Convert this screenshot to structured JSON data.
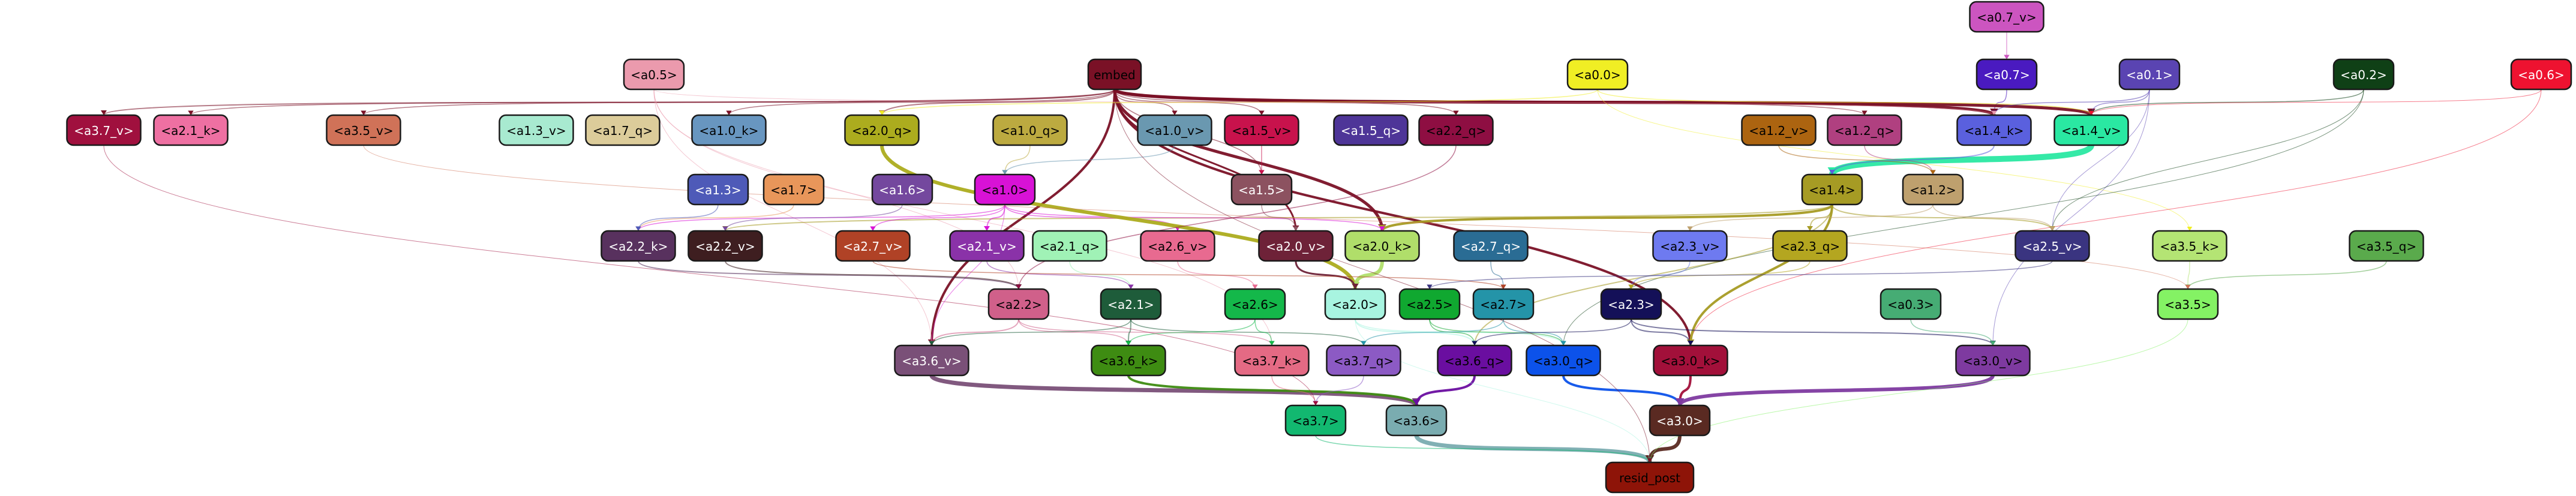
{
  "nodes": [
    {
      "id": "a0.7_v",
      "label": "<a0.7_v>",
      "fill": "#cc55c0",
      "text": "#000000"
    },
    {
      "id": "a0.5",
      "label": "<a0.5>",
      "fill": "#eb9aad",
      "text": "#000000"
    },
    {
      "id": "embed",
      "label": "embed",
      "fill": "#7a1126",
      "text": "#000000"
    },
    {
      "id": "a0.0",
      "label": "<a0.0>",
      "fill": "#f0ee24",
      "text": "#000000"
    },
    {
      "id": "a0.7",
      "label": "<a0.7>",
      "fill": "#4a1ac0",
      "text": "#ffffff"
    },
    {
      "id": "a0.1",
      "label": "<a0.1>",
      "fill": "#5a44b2",
      "text": "#ffffff"
    },
    {
      "id": "a0.2",
      "label": "<a0.2>",
      "fill": "#0f4016",
      "text": "#ffffff"
    },
    {
      "id": "a0.6",
      "label": "<a0.6>",
      "fill": "#ee1230",
      "text": "#ffffff"
    },
    {
      "id": "a3.7_v",
      "label": "<a3.7_v>",
      "fill": "#a0103e",
      "text": "#ffffff"
    },
    {
      "id": "a2.1_k",
      "label": "<a2.1_k>",
      "fill": "#ee70a2",
      "text": "#000000"
    },
    {
      "id": "a3.5_v",
      "label": "<a3.5_v>",
      "fill": "#d07258",
      "text": "#000000"
    },
    {
      "id": "a1.3_v",
      "label": "<a1.3_v>",
      "fill": "#a8ead0",
      "text": "#000000"
    },
    {
      "id": "a1.7_q",
      "label": "<a1.7_q>",
      "fill": "#dccc9a",
      "text": "#000000"
    },
    {
      "id": "a1.0_k",
      "label": "<a1.0_k>",
      "fill": "#6896c0",
      "text": "#000000"
    },
    {
      "id": "a2.0_q",
      "label": "<a2.0_q>",
      "fill": "#acac1e",
      "text": "#000000"
    },
    {
      "id": "a1.0_q",
      "label": "<a1.0_q>",
      "fill": "#bcaa40",
      "text": "#000000"
    },
    {
      "id": "a1.0_v",
      "label": "<a1.0_v>",
      "fill": "#6a98b0",
      "text": "#000000"
    },
    {
      "id": "a1.5_v",
      "label": "<a1.5_v>",
      "fill": "#c8124c",
      "text": "#000000"
    },
    {
      "id": "a1.5_q",
      "label": "<a1.5_q>",
      "fill": "#4e3598",
      "text": "#ffffff"
    },
    {
      "id": "a2.2_q",
      "label": "<a2.2_q>",
      "fill": "#8e0e42",
      "text": "#000000"
    },
    {
      "id": "a1.2_v",
      "label": "<a1.2_v>",
      "fill": "#ac6410",
      "text": "#000000"
    },
    {
      "id": "a1.2_q",
      "label": "<a1.2_q>",
      "fill": "#b04080",
      "text": "#000000"
    },
    {
      "id": "a1.4_k",
      "label": "<a1.4_k>",
      "fill": "#5a60de",
      "text": "#000000"
    },
    {
      "id": "a1.4_v",
      "label": "<a1.4_v>",
      "fill": "#2ae8a2",
      "text": "#000000"
    },
    {
      "id": "a1.3",
      "label": "<a1.3>",
      "fill": "#4e5ab8",
      "text": "#ffffff"
    },
    {
      "id": "a1.7",
      "label": "<a1.7>",
      "fill": "#e8965a",
      "text": "#000000"
    },
    {
      "id": "a1.6",
      "label": "<a1.6>",
      "fill": "#74489e",
      "text": "#ffffff"
    },
    {
      "id": "a1.0",
      "label": "<a1.0>",
      "fill": "#d812d6",
      "text": "#000000"
    },
    {
      "id": "a1.5",
      "label": "<a1.5>",
      "fill": "#8c5260",
      "text": "#ffffff"
    },
    {
      "id": "a1.4",
      "label": "<a1.4>",
      "fill": "#a69b24",
      "text": "#000000"
    },
    {
      "id": "a1.2",
      "label": "<a1.2>",
      "fill": "#bea06e",
      "text": "#000000"
    },
    {
      "id": "a2.2_k",
      "label": "<a2.2_k>",
      "fill": "#58315e",
      "text": "#ffffff"
    },
    {
      "id": "a2.2_v",
      "label": "<a2.2_v>",
      "fill": "#3e1e20",
      "text": "#ffffff"
    },
    {
      "id": "a2.7_v",
      "label": "<a2.7_v>",
      "fill": "#b04226",
      "text": "#ffffff"
    },
    {
      "id": "a2.1_v",
      "label": "<a2.1_v>",
      "fill": "#8a32a8",
      "text": "#ffffff"
    },
    {
      "id": "a2.1_q",
      "label": "<a2.1_q>",
      "fill": "#a0f2b6",
      "text": "#000000"
    },
    {
      "id": "a2.6_v",
      "label": "<a2.6_v>",
      "fill": "#e86a90",
      "text": "#000000"
    },
    {
      "id": "a2.0_v",
      "label": "<a2.0_v>",
      "fill": "#6e2238",
      "text": "#ffffff"
    },
    {
      "id": "a2.0_k",
      "label": "<a2.0_k>",
      "fill": "#b0de6a",
      "text": "#000000"
    },
    {
      "id": "a2.7_q",
      "label": "<a2.7_q>",
      "fill": "#2a6c94",
      "text": "#ffffff"
    },
    {
      "id": "a2.3_v",
      "label": "<a2.3_v>",
      "fill": "#6e7af0",
      "text": "#000000"
    },
    {
      "id": "a2.3_q",
      "label": "<a2.3_q>",
      "fill": "#b4a620",
      "text": "#000000"
    },
    {
      "id": "a2.5_v",
      "label": "<a2.5_v>",
      "fill": "#3a3480",
      "text": "#ffffff"
    },
    {
      "id": "a3.5_k",
      "label": "<a3.5_k>",
      "fill": "#b4e474",
      "text": "#000000"
    },
    {
      "id": "a3.5_q",
      "label": "<a3.5_q>",
      "fill": "#5aaa4c",
      "text": "#000000"
    },
    {
      "id": "a2.2",
      "label": "<a2.2>",
      "fill": "#d0608a",
      "text": "#000000"
    },
    {
      "id": "a2.1",
      "label": "<a2.1>",
      "fill": "#1e5c3a",
      "text": "#ffffff"
    },
    {
      "id": "a2.6",
      "label": "<a2.6>",
      "fill": "#14b84a",
      "text": "#000000"
    },
    {
      "id": "a2.0",
      "label": "<a2.0>",
      "fill": "#a8f4e0",
      "text": "#000000"
    },
    {
      "id": "a2.5",
      "label": "<a2.5>",
      "fill": "#10a830",
      "text": "#000000"
    },
    {
      "id": "a2.7",
      "label": "<a2.7>",
      "fill": "#2494a8",
      "text": "#000000"
    },
    {
      "id": "a2.3",
      "label": "<a2.3>",
      "fill": "#141058",
      "text": "#ffffff"
    },
    {
      "id": "a0.3",
      "label": "<a0.3>",
      "fill": "#46ac74",
      "text": "#000000"
    },
    {
      "id": "a3.5",
      "label": "<a3.5>",
      "fill": "#84f264",
      "text": "#000000"
    },
    {
      "id": "a3.6_v",
      "label": "<a3.6_v>",
      "fill": "#7a5078",
      "text": "#ffffff"
    },
    {
      "id": "a3.6_k",
      "label": "<a3.6_k>",
      "fill": "#3e8c12",
      "text": "#000000"
    },
    {
      "id": "a3.7_k",
      "label": "<a3.7_k>",
      "fill": "#e46a84",
      "text": "#000000"
    },
    {
      "id": "a3.7_q",
      "label": "<a3.7_q>",
      "fill": "#8c5ac4",
      "text": "#000000"
    },
    {
      "id": "a3.6_q",
      "label": "<a3.6_q>",
      "fill": "#6a0ea0",
      "text": "#000000"
    },
    {
      "id": "a3.0_q",
      "label": "<a3.0_q>",
      "fill": "#0c52ea",
      "text": "#000000"
    },
    {
      "id": "a3.0_k",
      "label": "<a3.0_k>",
      "fill": "#a2103a",
      "text": "#000000"
    },
    {
      "id": "a3.0_v",
      "label": "<a3.0_v>",
      "fill": "#7e3aa0",
      "text": "#000000"
    },
    {
      "id": "a3.7",
      "label": "<a3.7>",
      "fill": "#12b870",
      "text": "#000000"
    },
    {
      "id": "a3.6",
      "label": "<a3.6>",
      "fill": "#7aacb0",
      "text": "#000000"
    },
    {
      "id": "a3.0",
      "label": "<a3.0>",
      "fill": "#5a2a22",
      "text": "#ffffff"
    },
    {
      "id": "resid_post",
      "label": "resid_post",
      "fill": "#8e1408",
      "text": "#000000"
    }
  ],
  "edges": [
    {
      "from": "a0.7_v",
      "to": "a0.7",
      "color": "#cc55c0",
      "weight": 1.5
    },
    {
      "from": "a0.7",
      "to": "a1.4_k",
      "color": "#4a1ac0",
      "weight": 1.5
    },
    {
      "from": "embed",
      "to": "a1.4_k",
      "color": "#7a1126",
      "weight": 5
    },
    {
      "from": "embed",
      "to": "a1.4_v",
      "color": "#7a1126",
      "weight": 5
    },
    {
      "from": "embed",
      "to": "a2.0_k",
      "color": "#7a1126",
      "weight": 5
    },
    {
      "from": "embed",
      "to": "a3.6_v",
      "color": "#7a1126",
      "weight": 4
    },
    {
      "from": "embed",
      "to": "a3.0_k",
      "color": "#7a1126",
      "weight": 4
    },
    {
      "from": "embed",
      "to": "a2.0_v",
      "color": "#7a1126",
      "weight": 3
    },
    {
      "from": "embed",
      "to": "a3.7_v",
      "color": "#7a1126",
      "weight": 2
    },
    {
      "from": "embed",
      "to": "a2.1_k",
      "color": "#7a1126",
      "weight": 1.5
    },
    {
      "from": "embed",
      "to": "a3.5_v",
      "color": "#7a1126",
      "weight": 1.5
    },
    {
      "from": "embed",
      "to": "a1.0_k",
      "color": "#7a1126",
      "weight": 1.5
    },
    {
      "from": "embed",
      "to": "a2.0_q",
      "color": "#7a1126",
      "weight": 2
    },
    {
      "from": "embed",
      "to": "a1.0_v",
      "color": "#7a1126",
      "weight": 1.5
    },
    {
      "from": "embed",
      "to": "a1.5_v",
      "color": "#7a1126",
      "weight": 1.5
    },
    {
      "from": "embed",
      "to": "a2.2_q",
      "color": "#7a1126",
      "weight": 1.5
    },
    {
      "from": "embed",
      "to": "a1.2_q",
      "color": "#7a1126",
      "weight": 1.5
    },
    {
      "from": "embed",
      "to": "a1.5",
      "color": "#7a1126",
      "weight": 1.5
    },
    {
      "from": "a0.0",
      "to": "a1.4_v",
      "color": "#f0ee24",
      "weight": 1.5
    },
    {
      "from": "a0.0",
      "to": "a2.0_q",
      "color": "#f0ee24",
      "weight": 1.5
    },
    {
      "from": "a0.0",
      "to": "a3.5_k",
      "color": "#f0ee24",
      "weight": 1
    },
    {
      "from": "a0.1",
      "to": "a1.4_k",
      "color": "#5a44b2",
      "weight": 1.5
    },
    {
      "from": "a0.1",
      "to": "a1.4_v",
      "color": "#5a44b2",
      "weight": 1.5
    },
    {
      "from": "a0.1",
      "to": "a2.5_v",
      "color": "#5a44b2",
      "weight": 1
    },
    {
      "from": "a0.1",
      "to": "a3.0_v",
      "color": "#5a44b2",
      "weight": 1
    },
    {
      "from": "a0.2",
      "to": "a1.4_v",
      "color": "#0f4016",
      "weight": 1.5
    },
    {
      "from": "a0.2",
      "to": "a2.5_v",
      "color": "#0f4016",
      "weight": 1
    },
    {
      "from": "a0.2",
      "to": "a3.0_q",
      "color": "#0f4016",
      "weight": 1
    },
    {
      "from": "a0.6",
      "to": "a1.4_v",
      "color": "#ee1230",
      "weight": 1
    },
    {
      "from": "a0.6",
      "to": "a3.0_k",
      "color": "#ee1230",
      "weight": 1
    },
    {
      "from": "a0.5",
      "to": "a3.6_v",
      "color": "#eb9aad",
      "weight": 1
    },
    {
      "from": "a0.5",
      "to": "a2.2",
      "color": "#eb9aad",
      "weight": 1
    },
    {
      "from": "a0.5",
      "to": "a3.7_k",
      "color": "#eb9aad",
      "weight": 1
    },
    {
      "from": "a0.5",
      "to": "a1.4_k",
      "color": "#eb9aad",
      "weight": 1
    },
    {
      "from": "a1.4_v",
      "to": "a1.4",
      "color": "#2ae8a2",
      "weight": 10
    },
    {
      "from": "a1.4_k",
      "to": "a1.4",
      "color": "#5a60de",
      "weight": 2
    },
    {
      "from": "a1.2_q",
      "to": "a1.2",
      "color": "#b04080",
      "weight": 1.5
    },
    {
      "from": "a1.2_v",
      "to": "a1.2",
      "color": "#ac6410",
      "weight": 1.5
    },
    {
      "from": "a1.0_q",
      "to": "a1.0",
      "color": "#bcaa40",
      "weight": 1.5
    },
    {
      "from": "a1.0_v",
      "to": "a1.0",
      "color": "#6a98b0",
      "weight": 1.5
    },
    {
      "from": "a1.5_v",
      "to": "a1.5",
      "color": "#c8124c",
      "weight": 1.5
    },
    {
      "from": "a1.4",
      "to": "a2.0_k",
      "color": "#a69b24",
      "weight": 4
    },
    {
      "from": "a1.4",
      "to": "a3.0_k",
      "color": "#a69b24",
      "weight": 4
    },
    {
      "from": "a1.4",
      "to": "a2.3_q",
      "color": "#a69b24",
      "weight": 2
    },
    {
      "from": "a1.4",
      "to": "a2.5_v",
      "color": "#a69b24",
      "weight": 2
    },
    {
      "from": "a1.4",
      "to": "a2.2_v",
      "color": "#a69b24",
      "weight": 2
    },
    {
      "from": "a1.4",
      "to": "a3.6_q",
      "color": "#a69b24",
      "weight": 2
    },
    {
      "from": "a1.2",
      "to": "a2.5_v",
      "color": "#bea06e",
      "weight": 1.5
    },
    {
      "from": "a1.2",
      "to": "a2.3_v",
      "color": "#bea06e",
      "weight": 1.5
    },
    {
      "from": "a1.0",
      "to": "a2.1_v",
      "color": "#d812d6",
      "weight": 2
    },
    {
      "from": "a1.0",
      "to": "a2.6_v",
      "color": "#d812d6",
      "weight": 1.5
    },
    {
      "from": "a1.0",
      "to": "a2.2_k",
      "color": "#d812d6",
      "weight": 1.5
    },
    {
      "from": "a1.0",
      "to": "a2.0_k",
      "color": "#d812d6",
      "weight": 1.5
    },
    {
      "from": "a1.0",
      "to": "a2.7_v",
      "color": "#d812d6",
      "weight": 1.5
    },
    {
      "from": "a1.0",
      "to": "a3.6_v",
      "color": "#d812d6",
      "weight": 1
    },
    {
      "from": "a1.5",
      "to": "a2.0_v",
      "color": "#8c5260",
      "weight": 1.5
    },
    {
      "from": "a1.6",
      "to": "a2.2_v",
      "color": "#74489e",
      "weight": 1.5
    },
    {
      "from": "a1.7",
      "to": "a2.2_k",
      "color": "#e8965a",
      "weight": 1.5
    },
    {
      "from": "a1.3",
      "to": "a2.2_k",
      "color": "#4e5ab8",
      "weight": 1.5
    },
    {
      "from": "a2.0_q",
      "to": "a2.0",
      "color": "#acac1e",
      "weight": 6
    },
    {
      "from": "a2.0_k",
      "to": "a2.0",
      "color": "#b0de6a",
      "weight": 6
    },
    {
      "from": "a2.0_v",
      "to": "a2.0",
      "color": "#6e2238",
      "weight": 3
    },
    {
      "from": "a2.2_k",
      "to": "a2.2",
      "color": "#58315e",
      "weight": 2
    },
    {
      "from": "a2.2_v",
      "to": "a2.2",
      "color": "#3e1e20",
      "weight": 2
    },
    {
      "from": "a2.2_q",
      "to": "a2.2",
      "color": "#8e0e42",
      "weight": 1.5
    },
    {
      "from": "a2.1_q",
      "to": "a2.1",
      "color": "#a0f2b6",
      "weight": 1.5
    },
    {
      "from": "a2.1_v",
      "to": "a2.1",
      "color": "#8a32a8",
      "weight": 1.5
    },
    {
      "from": "a2.6_v",
      "to": "a2.6",
      "color": "#e86a90",
      "weight": 1.5
    },
    {
      "from": "a2.7_q",
      "to": "a2.7",
      "color": "#2a6c94",
      "weight": 1.5
    },
    {
      "from": "a2.7_v",
      "to": "a2.7",
      "color": "#b04226",
      "weight": 1.5
    },
    {
      "from": "a2.3_v",
      "to": "a2.3",
      "color": "#6e7af0",
      "weight": 1.5
    },
    {
      "from": "a2.3_q",
      "to": "a2.3",
      "color": "#b4a620",
      "weight": 1.5
    },
    {
      "from": "a2.5_v",
      "to": "a2.5",
      "color": "#3a3480",
      "weight": 1.5
    },
    {
      "from": "a3.5_k",
      "to": "a3.5",
      "color": "#b4e474",
      "weight": 1.5
    },
    {
      "from": "a3.5_q",
      "to": "a3.5",
      "color": "#5aaa4c",
      "weight": 1.5
    },
    {
      "from": "a3.5_v",
      "to": "a3.5",
      "color": "#d07258",
      "weight": 1
    },
    {
      "from": "a2.2",
      "to": "a3.6_v",
      "color": "#d0608a",
      "weight": 2
    },
    {
      "from": "a2.2",
      "to": "a3.7_k",
      "color": "#d0608a",
      "weight": 1.5
    },
    {
      "from": "a2.2",
      "to": "a3.6_k",
      "color": "#d0608a",
      "weight": 1.5
    },
    {
      "from": "a2.1",
      "to": "a3.6_k",
      "color": "#1e5c3a",
      "weight": 2
    },
    {
      "from": "a2.1",
      "to": "a3.7_q",
      "color": "#1e5c3a",
      "weight": 1.5
    },
    {
      "from": "a2.1",
      "to": "a3.6_v",
      "color": "#1e5c3a",
      "weight": 1.5
    },
    {
      "from": "a2.6",
      "to": "a3.6_k",
      "color": "#14b84a",
      "weight": 1.5
    },
    {
      "from": "a2.6",
      "to": "a3.7_k",
      "color": "#14b84a",
      "weight": 1.5
    },
    {
      "from": "a2.0",
      "to": "a3.6_q",
      "color": "#a8f4e0",
      "weight": 2
    },
    {
      "from": "a2.0",
      "to": "a3.0_q",
      "color": "#a8f4e0",
      "weight": 1.5
    },
    {
      "from": "a2.5",
      "to": "a3.6_q",
      "color": "#10a830",
      "weight": 1.5
    },
    {
      "from": "a2.5",
      "to": "a3.0_q",
      "color": "#10a830",
      "weight": 1.5
    },
    {
      "from": "a2.7",
      "to": "a3.0_q",
      "color": "#2494a8",
      "weight": 1.5
    },
    {
      "from": "a2.7",
      "to": "a3.7_q",
      "color": "#2494a8",
      "weight": 1.5
    },
    {
      "from": "a2.3",
      "to": "a3.0_k",
      "color": "#141058",
      "weight": 2
    },
    {
      "from": "a2.3",
      "to": "a3.0_v",
      "color": "#141058",
      "weight": 2
    },
    {
      "from": "a2.3",
      "to": "a3.6_q",
      "color": "#141058",
      "weight": 1.5
    },
    {
      "from": "a0.3",
      "to": "a3.0_v",
      "color": "#46ac74",
      "weight": 1.5
    },
    {
      "from": "a3.6_v",
      "to": "a3.6",
      "color": "#7a5078",
      "weight": 7
    },
    {
      "from": "a3.6_k",
      "to": "a3.6",
      "color": "#3e8c12",
      "weight": 4
    },
    {
      "from": "a3.6_q",
      "to": "a3.6",
      "color": "#6a0ea0",
      "weight": 4
    },
    {
      "from": "a3.7_k",
      "to": "a3.7",
      "color": "#e46a84",
      "weight": 1.5
    },
    {
      "from": "a3.7_q",
      "to": "a3.7",
      "color": "#8c5ac4",
      "weight": 1.5
    },
    {
      "from": "a3.7_v",
      "to": "a3.7",
      "color": "#a0103e",
      "weight": 1
    },
    {
      "from": "a3.0_q",
      "to": "a3.0",
      "color": "#0c52ea",
      "weight": 4
    },
    {
      "from": "a3.0_k",
      "to": "a3.0",
      "color": "#a2103a",
      "weight": 4
    },
    {
      "from": "a3.0_v",
      "to": "a3.0",
      "color": "#7e3aa0",
      "weight": 6
    },
    {
      "from": "a3.6",
      "to": "resid_post",
      "color": "#7aacb0",
      "weight": 7
    },
    {
      "from": "a3.0",
      "to": "resid_post",
      "color": "#5a2a22",
      "weight": 6
    },
    {
      "from": "a3.7",
      "to": "resid_post",
      "color": "#12b870",
      "weight": 1.5
    },
    {
      "from": "a3.5",
      "to": "resid_post",
      "color": "#84f264",
      "weight": 1
    },
    {
      "from": "a2.0",
      "to": "resid_post",
      "color": "#a8f4e0",
      "weight": 1
    },
    {
      "from": "embed",
      "to": "resid_post",
      "color": "#7a1126",
      "weight": 1
    }
  ]
}
